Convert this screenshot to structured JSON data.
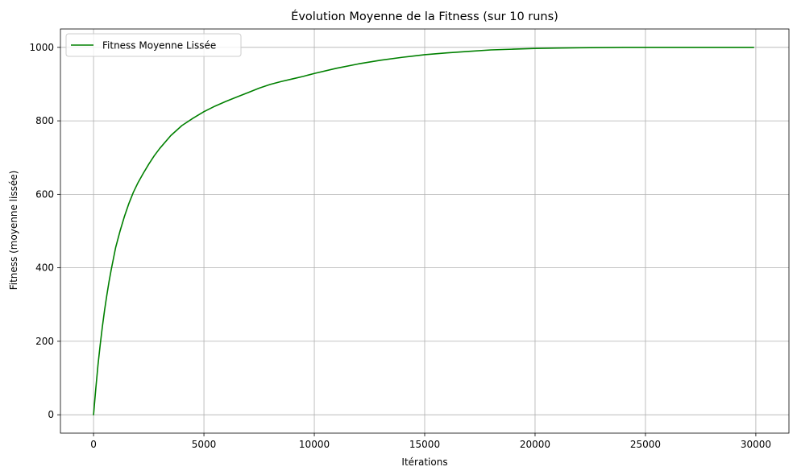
{
  "chart_data": {
    "type": "line",
    "title": "Évolution Moyenne de la Fitness (sur 10 runs)",
    "xlabel": "Itérations",
    "ylabel": "Fitness (moyenne lissée)",
    "xlim": [
      -1500,
      31500
    ],
    "ylim": [
      -50,
      1050
    ],
    "xticks": [
      0,
      5000,
      10000,
      15000,
      20000,
      25000,
      30000
    ],
    "yticks": [
      0,
      200,
      400,
      600,
      800,
      1000
    ],
    "grid": true,
    "legend_position": "upper-left",
    "series": [
      {
        "name": "Fitness Moyenne Lissée",
        "color": "#008000",
        "x": [
          0,
          100,
          200,
          300,
          400,
          500,
          600,
          700,
          800,
          900,
          1000,
          1200,
          1400,
          1600,
          1800,
          2000,
          2250,
          2500,
          2750,
          3000,
          3500,
          4000,
          4500,
          5000,
          5500,
          6000,
          6500,
          7000,
          7500,
          8000,
          8500,
          9000,
          9500,
          10000,
          11000,
          12000,
          13000,
          14000,
          15000,
          16000,
          17000,
          18000,
          19000,
          20000,
          21000,
          22000,
          23000,
          24000,
          25000,
          26000,
          27000,
          28000,
          29000,
          29900
        ],
        "y": [
          0,
          70,
          135,
          190,
          240,
          285,
          325,
          362,
          395,
          425,
          455,
          500,
          540,
          575,
          605,
          630,
          657,
          682,
          705,
          725,
          760,
          787,
          807,
          825,
          840,
          853,
          865,
          877,
          889,
          899,
          907,
          914,
          921,
          929,
          943,
          955,
          965,
          973,
          980,
          985,
          989,
          993,
          995,
          997,
          998,
          999,
          999.5,
          1000,
          1000,
          1000,
          1000,
          1000,
          1000,
          1000
        ]
      }
    ]
  }
}
